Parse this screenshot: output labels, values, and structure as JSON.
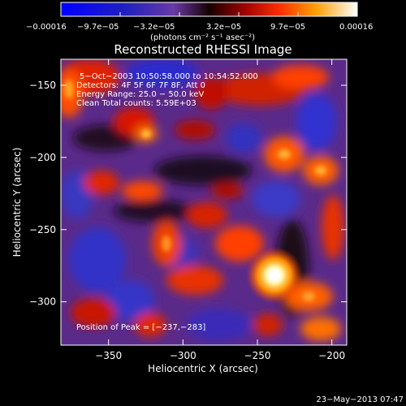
{
  "chart_data": {
    "type": "heatmap",
    "title": "Reconstructed RHESSI Image",
    "xlabel": "Heliocentric X (arcsec)",
    "ylabel": "Heliocentric Y (arcsec)",
    "xlim": [
      -382,
      -190
    ],
    "ylim": [
      -330,
      -132
    ],
    "xticks": [
      -350,
      -300,
      -250,
      -200
    ],
    "yticks": [
      -150,
      -200,
      -250,
      -300
    ],
    "xtick_labels": [
      "−350",
      "−300",
      "−250",
      "−200"
    ],
    "ytick_labels": [
      "−150",
      "−200",
      "−250",
      "−300"
    ],
    "colorbar": {
      "range": [
        -0.00016,
        0.00016
      ],
      "tick_labels": [
        "−0.00016",
        "−9.7e−05",
        "−3.2e−05",
        "3.2e−05",
        "9.7e−05",
        "0.00016"
      ],
      "units": "(photons cm⁻² s⁻¹ asec⁻²)"
    },
    "annotations": {
      "time": "5−Oct−2003 10:50:58.000 to 10:54:52.000",
      "detectors": "Detectors: 4F 5F 6F 7F 8F, Att 0",
      "energy": "Energy Range: 25.0 − 50.0 keV",
      "clean": "Clean    Total counts: 5.59E+03",
      "peak": "Position of Peak = [−237,−283]"
    },
    "peak_position": [
      -237,
      -283
    ],
    "grid": false,
    "legend": "none"
  },
  "footer": {
    "date": "23−May−2013 07:47"
  }
}
